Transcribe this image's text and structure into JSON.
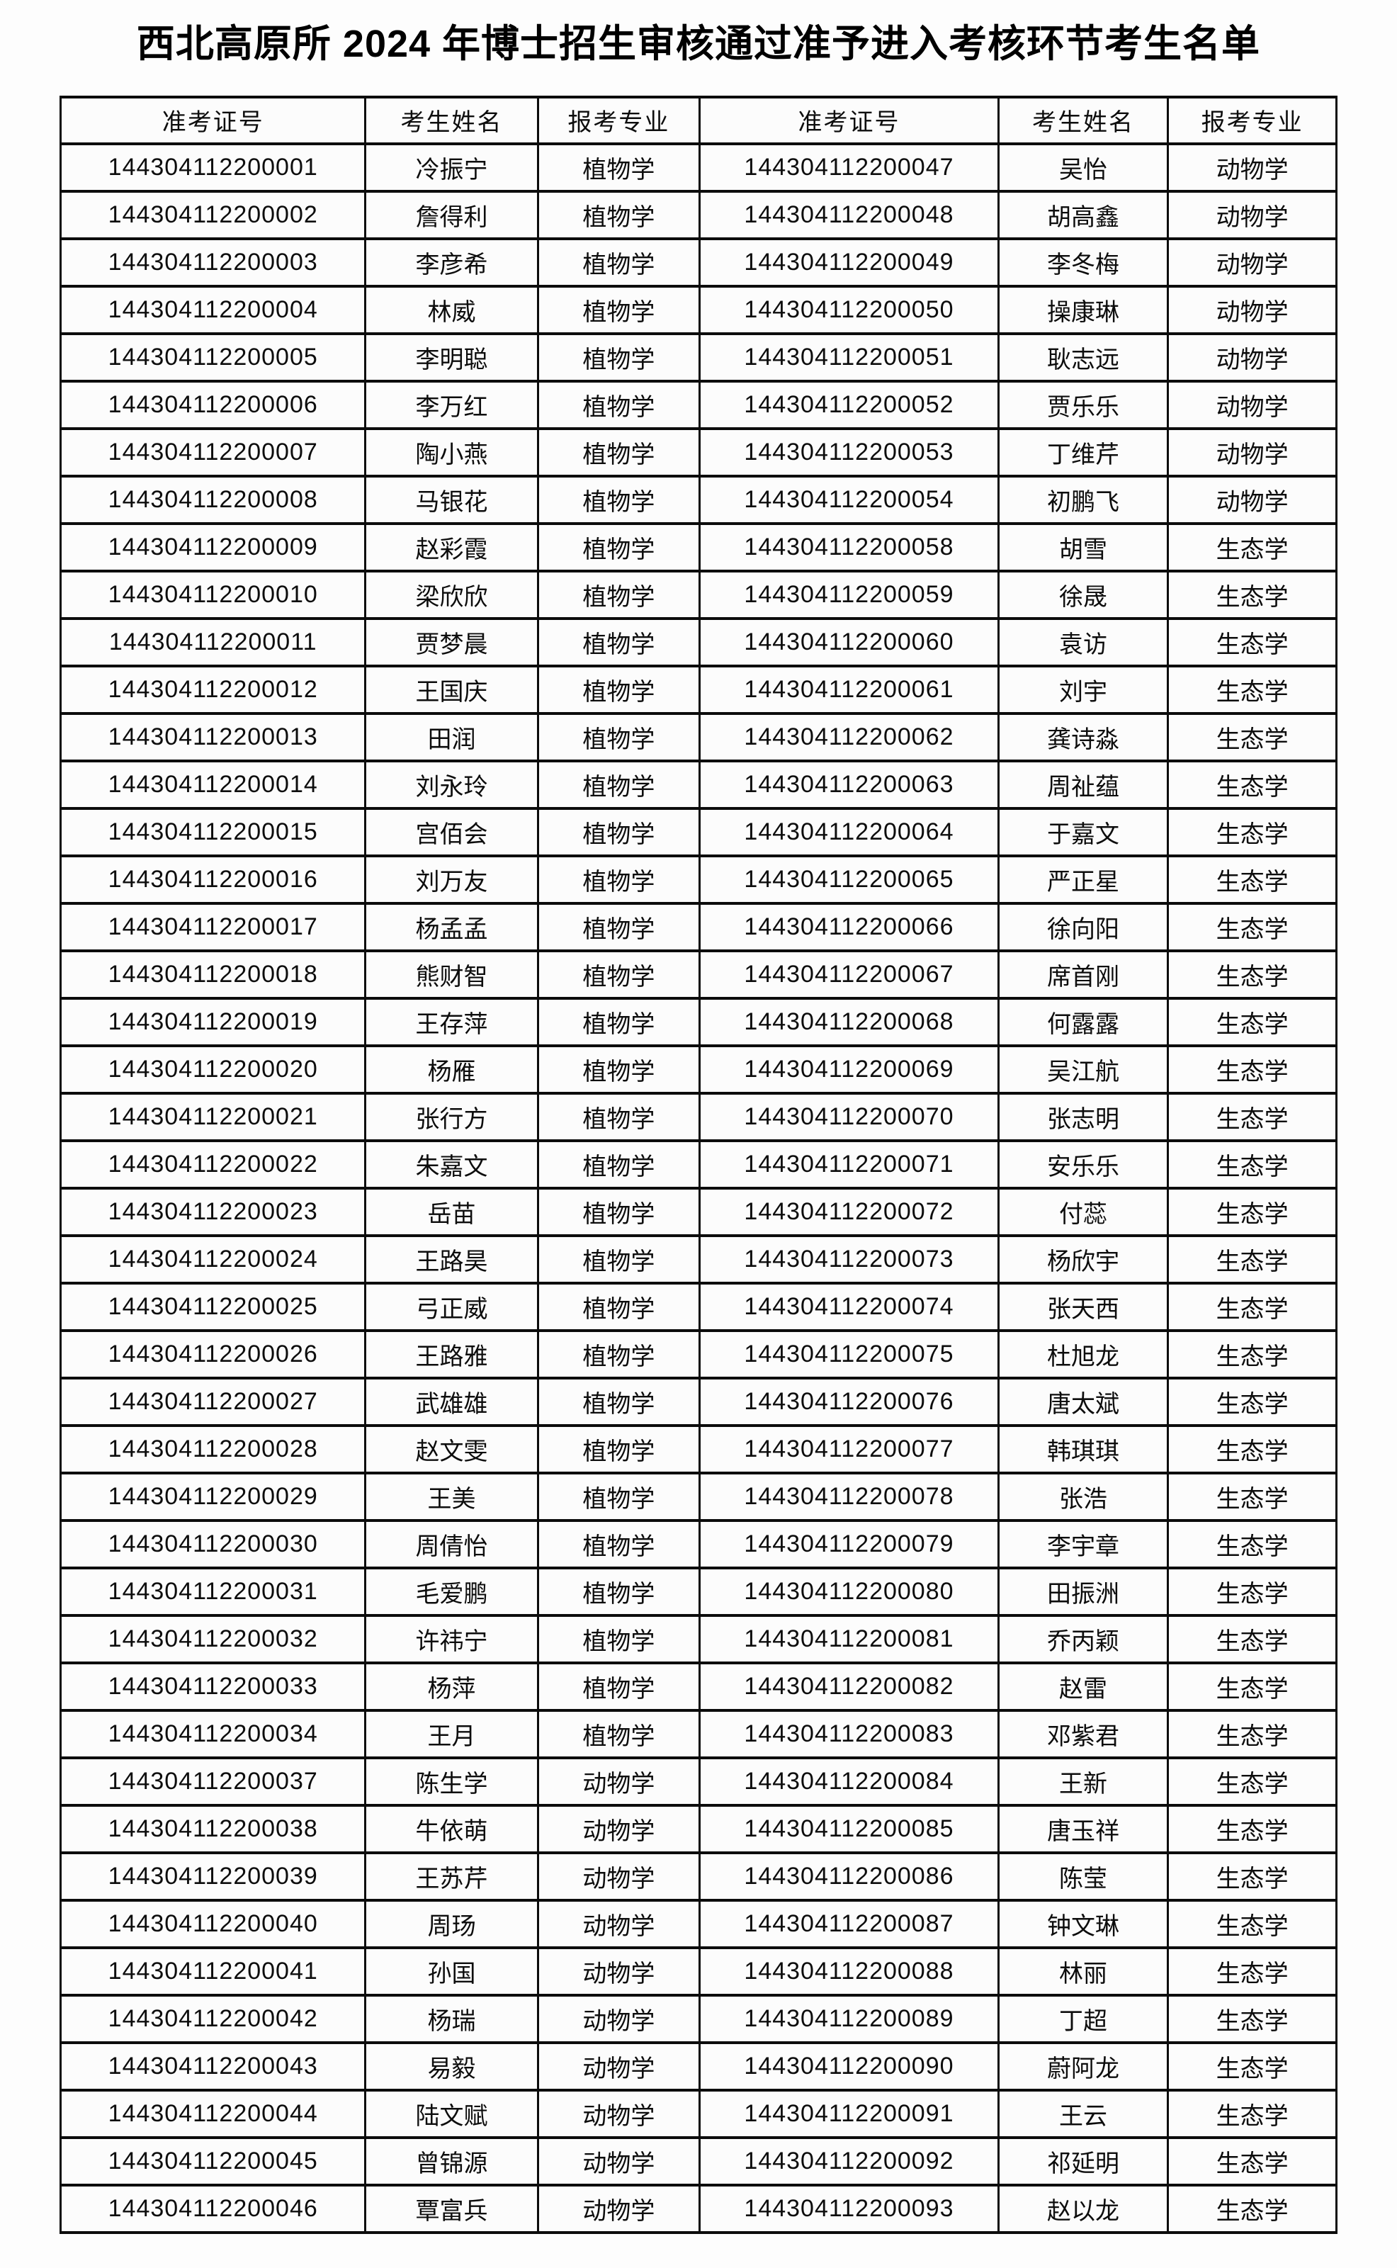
{
  "page": {
    "title": "西北高原所 2024 年博士招生审核通过准予进入考核环节考生名单"
  },
  "colors": {
    "border": "#0c0c0c",
    "text": "#0d0d0d",
    "background": "#fdfdfd"
  },
  "table": {
    "headers": [
      "准考证号",
      "考生姓名",
      "报考专业",
      "准考证号",
      "考生姓名",
      "报考专业"
    ],
    "rows": [
      [
        "144304112200001",
        "冷振宁",
        "植物学",
        "144304112200047",
        "吴怡",
        "动物学"
      ],
      [
        "144304112200002",
        "詹得利",
        "植物学",
        "144304112200048",
        "胡高鑫",
        "动物学"
      ],
      [
        "144304112200003",
        "李彦希",
        "植物学",
        "144304112200049",
        "李冬梅",
        "动物学"
      ],
      [
        "144304112200004",
        "林威",
        "植物学",
        "144304112200050",
        "操康琳",
        "动物学"
      ],
      [
        "144304112200005",
        "李明聪",
        "植物学",
        "144304112200051",
        "耿志远",
        "动物学"
      ],
      [
        "144304112200006",
        "李万红",
        "植物学",
        "144304112200052",
        "贾乐乐",
        "动物学"
      ],
      [
        "144304112200007",
        "陶小燕",
        "植物学",
        "144304112200053",
        "丁维芹",
        "动物学"
      ],
      [
        "144304112200008",
        "马银花",
        "植物学",
        "144304112200054",
        "初鹏飞",
        "动物学"
      ],
      [
        "144304112200009",
        "赵彩霞",
        "植物学",
        "144304112200058",
        "胡雪",
        "生态学"
      ],
      [
        "144304112200010",
        "梁欣欣",
        "植物学",
        "144304112200059",
        "徐晟",
        "生态学"
      ],
      [
        "144304112200011",
        "贾梦晨",
        "植物学",
        "144304112200060",
        "袁访",
        "生态学"
      ],
      [
        "144304112200012",
        "王国庆",
        "植物学",
        "144304112200061",
        "刘宇",
        "生态学"
      ],
      [
        "144304112200013",
        "田润",
        "植物学",
        "144304112200062",
        "龚诗淼",
        "生态学"
      ],
      [
        "144304112200014",
        "刘永玲",
        "植物学",
        "144304112200063",
        "周祉蕴",
        "生态学"
      ],
      [
        "144304112200015",
        "宫佰会",
        "植物学",
        "144304112200064",
        "于嘉文",
        "生态学"
      ],
      [
        "144304112200016",
        "刘万友",
        "植物学",
        "144304112200065",
        "严正星",
        "生态学"
      ],
      [
        "144304112200017",
        "杨孟孟",
        "植物学",
        "144304112200066",
        "徐向阳",
        "生态学"
      ],
      [
        "144304112200018",
        "熊财智",
        "植物学",
        "144304112200067",
        "席首刚",
        "生态学"
      ],
      [
        "144304112200019",
        "王存萍",
        "植物学",
        "144304112200068",
        "何露露",
        "生态学"
      ],
      [
        "144304112200020",
        "杨雁",
        "植物学",
        "144304112200069",
        "吴江航",
        "生态学"
      ],
      [
        "144304112200021",
        "张行方",
        "植物学",
        "144304112200070",
        "张志明",
        "生态学"
      ],
      [
        "144304112200022",
        "朱嘉文",
        "植物学",
        "144304112200071",
        "安乐乐",
        "生态学"
      ],
      [
        "144304112200023",
        "岳苗",
        "植物学",
        "144304112200072",
        "付蕊",
        "生态学"
      ],
      [
        "144304112200024",
        "王路昊",
        "植物学",
        "144304112200073",
        "杨欣宇",
        "生态学"
      ],
      [
        "144304112200025",
        "弓正威",
        "植物学",
        "144304112200074",
        "张天西",
        "生态学"
      ],
      [
        "144304112200026",
        "王路雅",
        "植物学",
        "144304112200075",
        "杜旭龙",
        "生态学"
      ],
      [
        "144304112200027",
        "武雄雄",
        "植物学",
        "144304112200076",
        "唐太斌",
        "生态学"
      ],
      [
        "144304112200028",
        "赵文雯",
        "植物学",
        "144304112200077",
        "韩琪琪",
        "生态学"
      ],
      [
        "144304112200029",
        "王美",
        "植物学",
        "144304112200078",
        "张浩",
        "生态学"
      ],
      [
        "144304112200030",
        "周倩怡",
        "植物学",
        "144304112200079",
        "李宇章",
        "生态学"
      ],
      [
        "144304112200031",
        "毛爱鹏",
        "植物学",
        "144304112200080",
        "田振洲",
        "生态学"
      ],
      [
        "144304112200032",
        "许祎宁",
        "植物学",
        "144304112200081",
        "乔丙颖",
        "生态学"
      ],
      [
        "144304112200033",
        "杨萍",
        "植物学",
        "144304112200082",
        "赵雷",
        "生态学"
      ],
      [
        "144304112200034",
        "王月",
        "植物学",
        "144304112200083",
        "邓紫君",
        "生态学"
      ],
      [
        "144304112200037",
        "陈生学",
        "动物学",
        "144304112200084",
        "王新",
        "生态学"
      ],
      [
        "144304112200038",
        "牛依萌",
        "动物学",
        "144304112200085",
        "唐玉祥",
        "生态学"
      ],
      [
        "144304112200039",
        "王苏芹",
        "动物学",
        "144304112200086",
        "陈莹",
        "生态学"
      ],
      [
        "144304112200040",
        "周玚",
        "动物学",
        "144304112200087",
        "钟文琳",
        "生态学"
      ],
      [
        "144304112200041",
        "孙国",
        "动物学",
        "144304112200088",
        "林丽",
        "生态学"
      ],
      [
        "144304112200042",
        "杨瑞",
        "动物学",
        "144304112200089",
        "丁超",
        "生态学"
      ],
      [
        "144304112200043",
        "易毅",
        "动物学",
        "144304112200090",
        "蔚阿龙",
        "生态学"
      ],
      [
        "144304112200044",
        "陆文赋",
        "动物学",
        "144304112200091",
        "王云",
        "生态学"
      ],
      [
        "144304112200045",
        "曾锦源",
        "动物学",
        "144304112200092",
        "祁延明",
        "生态学"
      ],
      [
        "144304112200046",
        "覃富兵",
        "动物学",
        "144304112200093",
        "赵以龙",
        "生态学"
      ]
    ]
  }
}
